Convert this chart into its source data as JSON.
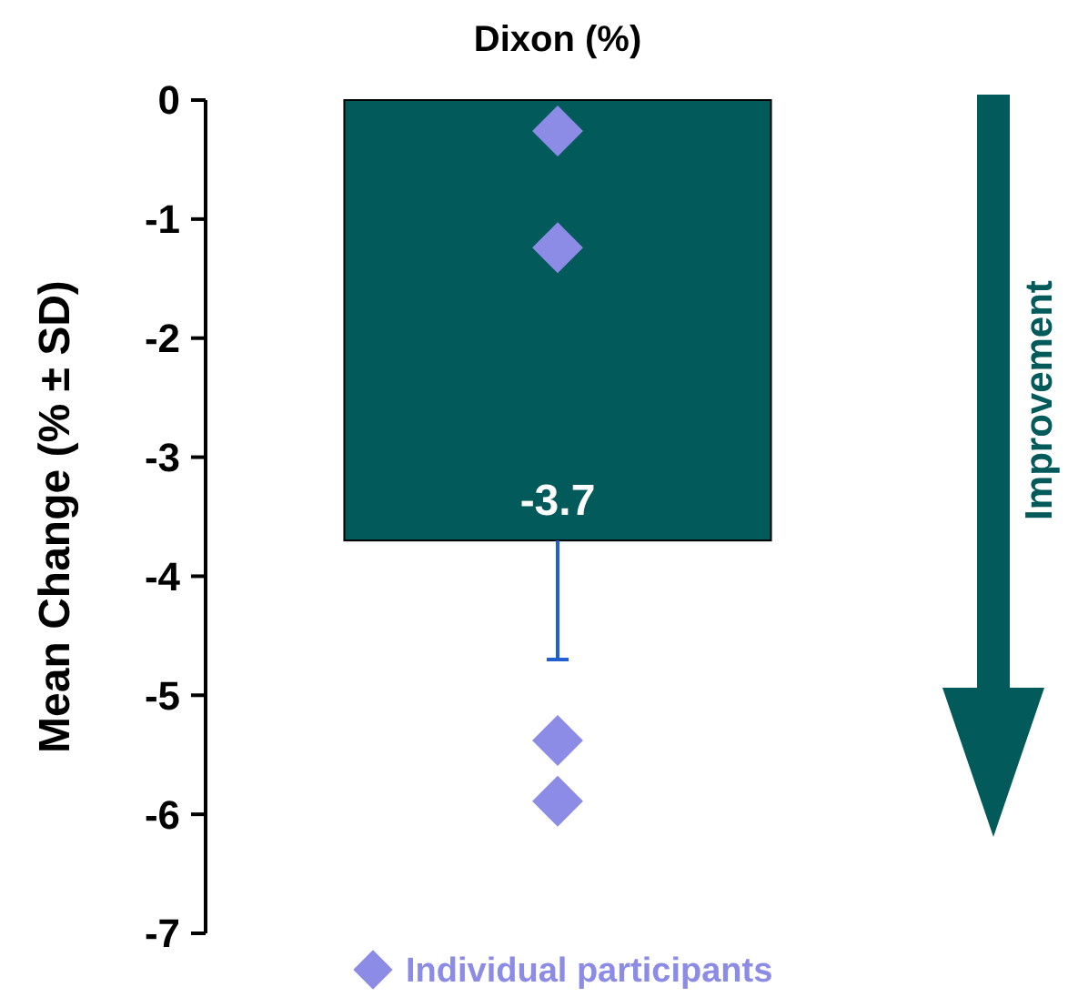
{
  "chart_data": {
    "type": "bar",
    "ylabel": "Mean Change (% ± SD)",
    "categories": [
      "Dixon (%)"
    ],
    "series": [
      {
        "color": "#025a5a",
        "values": [
          -3.7
        ],
        "value_labels": [
          "-3.7"
        ],
        "errors": [
          1.0
        ]
      },
      {
        "type": "scatter",
        "name": "Individual participants",
        "color": "#8c8ce6",
        "marker": "diamond",
        "x": [
          "Dixon (%)",
          "Dixon (%)",
          "Dixon (%)",
          "Dixon (%)"
        ],
        "values": [
          -0.26,
          -1.24,
          -5.38,
          -5.89
        ]
      }
    ],
    "ylim": [
      -7,
      0
    ],
    "yticks": [
      0,
      -1,
      -2,
      -3,
      -4,
      -5,
      -6,
      -7
    ],
    "legend": "bottom",
    "grid": false,
    "annotations": [
      "Improvement"
    ]
  }
}
